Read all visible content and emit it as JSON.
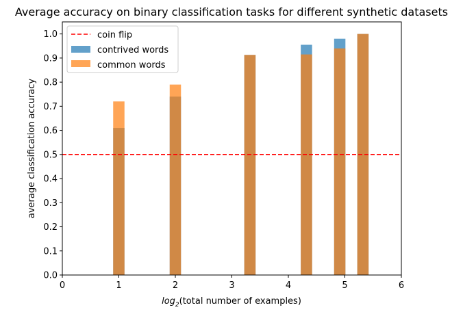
{
  "chart_data": {
    "type": "bar",
    "title": "Average accuracy on binary classification tasks for different synthetic datasets",
    "xlabel_var": "log",
    "xlabel_sub": "2",
    "xlabel_rest": "(total number of examples)",
    "ylabel": "average classification accuracy",
    "xlim": [
      0,
      6
    ],
    "ylim": [
      0,
      1.05
    ],
    "xticks": [
      "0",
      "1",
      "2",
      "3",
      "4",
      "5",
      "6"
    ],
    "yticks": [
      "0.0",
      "0.1",
      "0.2",
      "0.3",
      "0.4",
      "0.5",
      "0.6",
      "0.7",
      "0.8",
      "0.9",
      "1.0"
    ],
    "bar_width": 0.2,
    "x": [
      1.0,
      2.0,
      3.32,
      4.32,
      4.91,
      5.32
    ],
    "series": [
      {
        "name": "contrived words",
        "color": "#1f77b4",
        "alpha": 0.7,
        "values": [
          0.61,
          0.74,
          0.913,
          0.955,
          0.98,
          1.0
        ]
      },
      {
        "name": "common words",
        "color": "#ff7f0e",
        "alpha": 0.7,
        "values": [
          0.72,
          0.79,
          0.913,
          0.915,
          0.94,
          1.0
        ]
      }
    ],
    "reference_line": {
      "name": "coin flip",
      "y": 0.5,
      "color": "#ff0000",
      "style": "dashed"
    },
    "legend_position": "top-left",
    "grid": false
  }
}
